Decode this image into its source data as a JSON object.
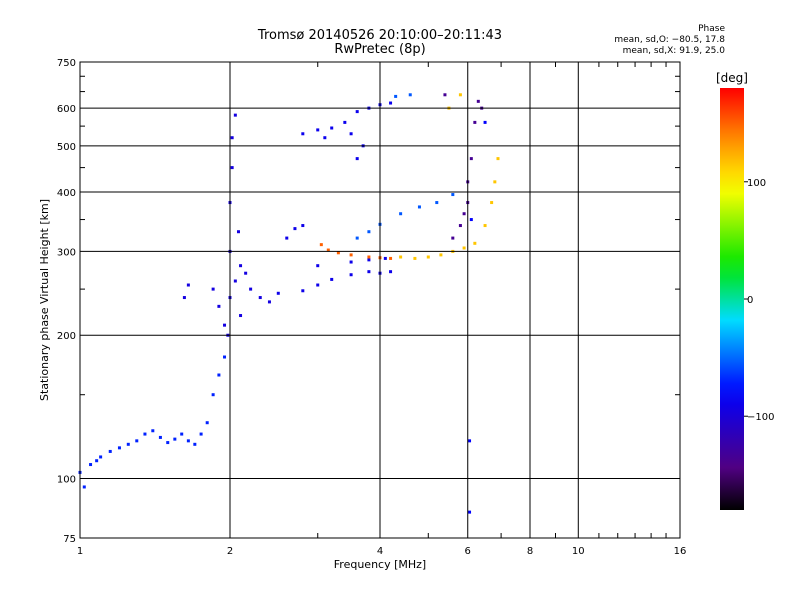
{
  "header": {
    "title_line1": "Tromsø 20140526 20:10:00–20:11:43",
    "title_line2": "RwPretec (8p)"
  },
  "phase_box": {
    "heading": "Phase",
    "line1": "mean, sd,O: −80.5, 17.8",
    "line2": "mean, sd,X:  91.9, 25.0"
  },
  "colorbar": {
    "unit": "[deg]",
    "tick_labels": [
      "100",
      "0",
      "−100"
    ],
    "ticks": [
      100,
      0,
      -100
    ],
    "range": [
      -180,
      180
    ],
    "colormap": "rainbow (black-purple-blue-cyan-green-yellow-orange-red)"
  },
  "chart_data": {
    "type": "scatter",
    "title": "Tromsø 20140526 20:10:00–20:11:43",
    "subtitle": "RwPretec (8p)",
    "xlabel": "Frequency [MHz]",
    "ylabel": "Stationary phase Virtual Height [km]",
    "xscale": "log",
    "yscale": "log",
    "xlim": [
      1,
      16
    ],
    "ylim": [
      75,
      750
    ],
    "x_ticks": [
      1,
      2,
      4,
      6,
      8,
      10,
      16
    ],
    "x_tick_labels": [
      "1",
      "2",
      "4",
      "6",
      "8",
      "10",
      "16"
    ],
    "y_ticks": [
      75,
      100,
      200,
      300,
      400,
      500,
      600,
      750
    ],
    "y_tick_labels": [
      "75",
      "100",
      "200",
      "300",
      "400",
      "500",
      "600",
      "750"
    ],
    "grid": true,
    "point_color_encodes": "phase [deg]",
    "series": [
      {
        "phase": -70,
        "points": [
          [
            1.0,
            103
          ],
          [
            1.05,
            107
          ],
          [
            1.1,
            111
          ],
          [
            1.15,
            114
          ],
          [
            1.2,
            116
          ],
          [
            1.25,
            118
          ],
          [
            1.3,
            120
          ],
          [
            1.35,
            124
          ],
          [
            1.4,
            126
          ],
          [
            1.45,
            122
          ],
          [
            1.5,
            119
          ],
          [
            1.55,
            121
          ],
          [
            1.6,
            124
          ],
          [
            1.65,
            120
          ],
          [
            1.7,
            118
          ],
          [
            1.75,
            124
          ],
          [
            1.8,
            131
          ],
          [
            1.85,
            150
          ],
          [
            1.9,
            165
          ],
          [
            1.95,
            180
          ],
          [
            1.02,
            96
          ],
          [
            1.08,
            109
          ]
        ]
      },
      {
        "phase": -95,
        "points": [
          [
            1.95,
            210
          ],
          [
            2.0,
            240
          ],
          [
            2.0,
            300
          ],
          [
            2.0,
            380
          ],
          [
            2.02,
            450
          ],
          [
            2.02,
            520
          ],
          [
            2.05,
            580
          ],
          [
            2.05,
            260
          ],
          [
            2.08,
            330
          ],
          [
            2.1,
            280
          ],
          [
            2.1,
            220
          ],
          [
            1.98,
            200
          ],
          [
            1.9,
            230
          ],
          [
            1.85,
            250
          ],
          [
            1.65,
            255
          ],
          [
            1.62,
            240
          ],
          [
            2.15,
            270
          ],
          [
            2.2,
            250
          ],
          [
            2.3,
            240
          ],
          [
            2.4,
            235
          ]
        ]
      },
      {
        "phase": -90,
        "points": [
          [
            2.5,
            245
          ],
          [
            2.8,
            248
          ],
          [
            3.0,
            255
          ],
          [
            3.2,
            262
          ],
          [
            3.5,
            268
          ],
          [
            3.8,
            272
          ],
          [
            4.0,
            270
          ],
          [
            4.2,
            272
          ],
          [
            3.0,
            280
          ],
          [
            3.5,
            285
          ],
          [
            3.8,
            288
          ],
          [
            4.1,
            290
          ],
          [
            2.6,
            320
          ],
          [
            2.7,
            335
          ],
          [
            2.8,
            340
          ]
        ]
      },
      {
        "phase": -88,
        "points": [
          [
            2.8,
            530
          ],
          [
            3.0,
            540
          ],
          [
            3.2,
            545
          ],
          [
            3.4,
            560
          ],
          [
            3.6,
            590
          ],
          [
            3.8,
            600
          ],
          [
            4.0,
            610
          ],
          [
            4.2,
            615
          ],
          [
            3.1,
            520
          ],
          [
            3.5,
            530
          ],
          [
            3.6,
            470
          ],
          [
            3.7,
            500
          ]
        ]
      },
      {
        "phase": -55,
        "points": [
          [
            3.6,
            320
          ],
          [
            3.8,
            330
          ],
          [
            4.0,
            342
          ],
          [
            4.4,
            360
          ],
          [
            4.8,
            372
          ],
          [
            5.2,
            380
          ],
          [
            5.6,
            395
          ],
          [
            4.3,
            635
          ],
          [
            4.6,
            640
          ]
        ]
      },
      {
        "phase": 150,
        "points": [
          [
            3.05,
            310
          ],
          [
            3.15,
            302
          ],
          [
            3.3,
            298
          ],
          [
            3.5,
            295
          ],
          [
            3.8,
            292
          ],
          [
            4.0,
            291
          ],
          [
            4.2,
            290
          ]
        ]
      },
      {
        "phase": 115,
        "points": [
          [
            4.4,
            292
          ],
          [
            4.7,
            290
          ],
          [
            5.0,
            292
          ],
          [
            5.3,
            295
          ],
          [
            5.6,
            300
          ],
          [
            5.9,
            305
          ],
          [
            6.2,
            312
          ],
          [
            6.5,
            340
          ],
          [
            6.7,
            380
          ],
          [
            6.8,
            420
          ],
          [
            6.9,
            470
          ],
          [
            5.5,
            600
          ],
          [
            5.8,
            640
          ]
        ]
      },
      {
        "phase": -135,
        "points": [
          [
            5.6,
            320
          ],
          [
            5.8,
            340
          ],
          [
            5.9,
            360
          ],
          [
            6.0,
            380
          ],
          [
            6.0,
            420
          ],
          [
            6.1,
            470
          ],
          [
            6.2,
            560
          ],
          [
            6.3,
            620
          ],
          [
            6.4,
            600
          ],
          [
            5.4,
            640
          ]
        ]
      },
      {
        "phase": -80,
        "points": [
          [
            6.05,
            120
          ],
          [
            6.05,
            85
          ],
          [
            6.1,
            350
          ],
          [
            6.5,
            560
          ]
        ]
      }
    ]
  }
}
